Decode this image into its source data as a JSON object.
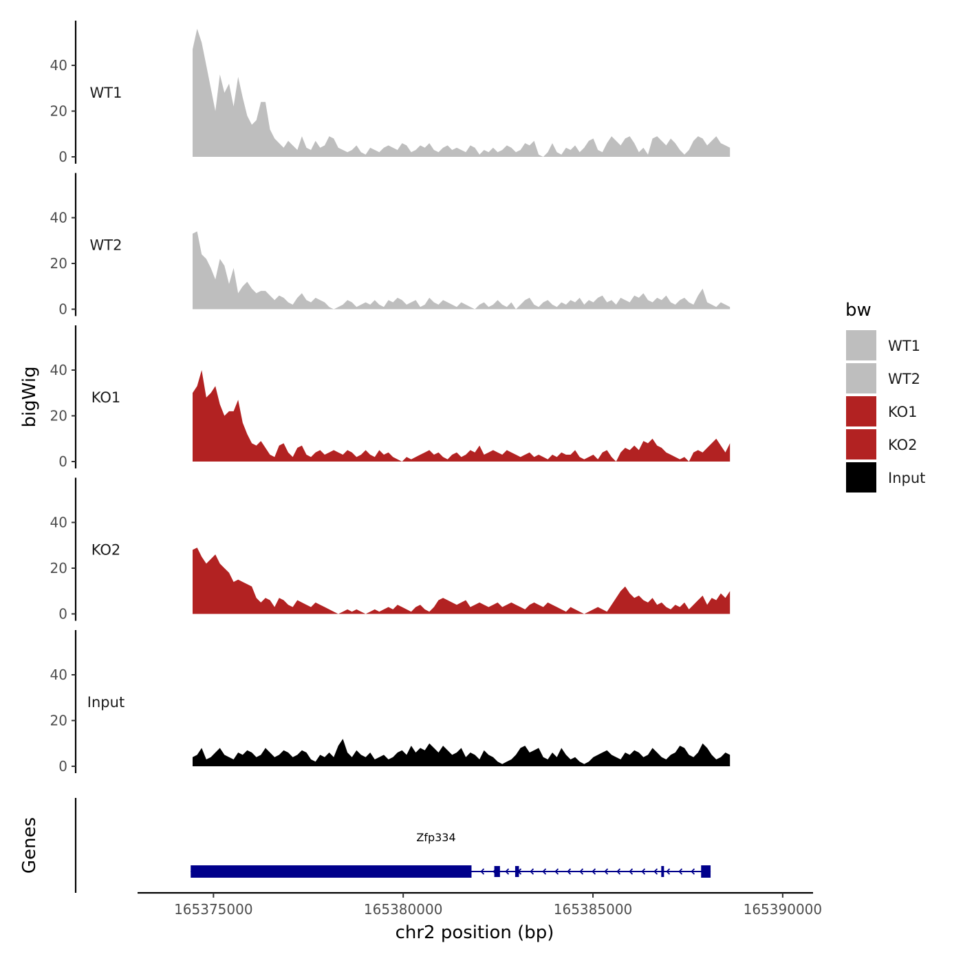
{
  "chart_data": {
    "type": "area",
    "title": "",
    "ylabel": "bigWig",
    "xlabel": "chr2 position (bp)",
    "xlim": [
      165373000,
      165390800
    ],
    "x_ticks": [
      165375000,
      165380000,
      165385000,
      165390000
    ],
    "x_tick_labels": [
      "165375000",
      "165380000",
      "165385000",
      "165390000"
    ],
    "ylim": [
      0,
      58
    ],
    "y_ticks": [
      0,
      20,
      40
    ],
    "y_tick_labels": [
      "0",
      "20",
      "40"
    ],
    "grid": false,
    "legend": {
      "title": "bw",
      "position": "right",
      "entries": [
        {
          "label": "WT1",
          "color": "#bebebe"
        },
        {
          "label": "WT2",
          "color": "#bebebe"
        },
        {
          "label": "KO1",
          "color": "#b22222"
        },
        {
          "label": "KO2",
          "color": "#b22222"
        },
        {
          "label": "Input",
          "color": "#000000"
        }
      ]
    },
    "x_start": 165374450,
    "x_step": 120,
    "series": [
      {
        "name": "WT1",
        "color": "#bebebe",
        "values": [
          47,
          56,
          50,
          40,
          30,
          20,
          36,
          28,
          32,
          22,
          35,
          26,
          18,
          14,
          16,
          24,
          24,
          12,
          8,
          6,
          4,
          7,
          5,
          3,
          9,
          4,
          3,
          7,
          4,
          5,
          9,
          8,
          4,
          3,
          2,
          3,
          5,
          2,
          1,
          4,
          3,
          2,
          4,
          5,
          4,
          3,
          6,
          5,
          2,
          3,
          5,
          4,
          6,
          3,
          2,
          4,
          5,
          3,
          4,
          3,
          2,
          5,
          4,
          1,
          3,
          2,
          4,
          2,
          3,
          5,
          4,
          2,
          3,
          6,
          5,
          7,
          1,
          0,
          2,
          6,
          2,
          1,
          4,
          3,
          5,
          2,
          4,
          7,
          8,
          3,
          2,
          6,
          9,
          7,
          5,
          8,
          9,
          6,
          2,
          4,
          1,
          8,
          9,
          7,
          5,
          8,
          6,
          3,
          1,
          3,
          7,
          9,
          8,
          5,
          7,
          9,
          6,
          5,
          4
        ]
      },
      {
        "name": "WT2",
        "color": "#bebebe",
        "values": [
          33,
          34,
          24,
          22,
          18,
          13,
          22,
          19,
          11,
          18,
          7,
          10,
          12,
          9,
          7,
          8,
          8,
          6,
          4,
          6,
          5,
          3,
          2,
          5,
          7,
          4,
          3,
          5,
          4,
          3,
          1,
          0,
          1,
          2,
          4,
          3,
          1,
          2,
          3,
          2,
          4,
          2,
          1,
          4,
          3,
          5,
          4,
          2,
          3,
          4,
          1,
          2,
          5,
          3,
          2,
          4,
          3,
          2,
          1,
          3,
          2,
          1,
          0,
          2,
          3,
          1,
          2,
          4,
          2,
          1,
          3,
          0,
          2,
          4,
          5,
          2,
          1,
          3,
          4,
          2,
          1,
          3,
          2,
          4,
          3,
          5,
          2,
          4,
          3,
          5,
          6,
          3,
          4,
          2,
          5,
          4,
          3,
          6,
          5,
          7,
          4,
          3,
          5,
          4,
          6,
          3,
          2,
          4,
          5,
          3,
          2,
          6,
          9,
          3,
          2,
          1,
          3,
          2,
          1
        ]
      },
      {
        "name": "KO1",
        "color": "#b22222",
        "values": [
          30,
          33,
          40,
          28,
          30,
          33,
          25,
          20,
          22,
          22,
          27,
          17,
          12,
          8,
          7,
          9,
          6,
          3,
          2,
          7,
          8,
          4,
          2,
          6,
          7,
          3,
          2,
          4,
          5,
          3,
          4,
          5,
          4,
          3,
          5,
          4,
          2,
          3,
          5,
          3,
          2,
          5,
          3,
          4,
          2,
          1,
          0,
          2,
          1,
          2,
          3,
          4,
          5,
          3,
          4,
          2,
          1,
          3,
          4,
          2,
          3,
          5,
          4,
          7,
          3,
          4,
          5,
          4,
          3,
          5,
          4,
          3,
          2,
          3,
          4,
          2,
          3,
          2,
          1,
          3,
          2,
          4,
          3,
          3,
          5,
          2,
          1,
          2,
          3,
          1,
          4,
          5,
          2,
          0,
          4,
          6,
          5,
          7,
          5,
          9,
          8,
          10,
          7,
          6,
          4,
          3,
          2,
          1,
          2,
          0,
          4,
          5,
          4,
          6,
          8,
          10,
          7,
          4,
          8
        ]
      },
      {
        "name": "KO2",
        "color": "#b22222",
        "values": [
          28,
          29,
          25,
          22,
          24,
          26,
          22,
          20,
          18,
          14,
          15,
          14,
          13,
          12,
          7,
          5,
          7,
          6,
          3,
          7,
          6,
          4,
          3,
          6,
          5,
          4,
          3,
          5,
          4,
          3,
          2,
          1,
          0,
          1,
          2,
          1,
          2,
          1,
          0,
          1,
          2,
          1,
          2,
          3,
          2,
          4,
          3,
          2,
          1,
          3,
          4,
          2,
          1,
          3,
          6,
          7,
          6,
          5,
          4,
          5,
          6,
          3,
          4,
          5,
          4,
          3,
          4,
          5,
          3,
          4,
          5,
          4,
          3,
          2,
          4,
          5,
          4,
          3,
          5,
          4,
          3,
          2,
          1,
          3,
          2,
          1,
          0,
          1,
          2,
          3,
          2,
          1,
          4,
          7,
          10,
          12,
          9,
          7,
          8,
          6,
          5,
          7,
          4,
          5,
          3,
          2,
          4,
          3,
          5,
          2,
          4,
          6,
          8,
          4,
          7,
          6,
          9,
          7,
          10
        ]
      },
      {
        "name": "Input",
        "color": "#000000",
        "values": [
          4,
          5,
          8,
          3,
          4,
          6,
          8,
          5,
          4,
          3,
          6,
          5,
          7,
          6,
          4,
          5,
          8,
          6,
          4,
          5,
          7,
          6,
          4,
          5,
          7,
          6,
          3,
          2,
          5,
          4,
          6,
          4,
          9,
          12,
          6,
          4,
          7,
          5,
          4,
          6,
          3,
          4,
          5,
          3,
          4,
          6,
          7,
          5,
          9,
          6,
          8,
          7,
          10,
          8,
          6,
          9,
          7,
          5,
          6,
          8,
          4,
          6,
          5,
          3,
          7,
          5,
          4,
          2,
          1,
          2,
          3,
          5,
          8,
          9,
          6,
          7,
          8,
          4,
          3,
          6,
          4,
          8,
          5,
          3,
          4,
          2,
          1,
          2,
          4,
          5,
          6,
          7,
          5,
          4,
          3,
          6,
          5,
          7,
          6,
          4,
          5,
          8,
          6,
          4,
          3,
          5,
          6,
          9,
          8,
          5,
          4,
          6,
          10,
          8,
          5,
          3,
          4,
          6,
          5
        ]
      }
    ],
    "genes_track": {
      "label": "Genes",
      "gene_name": "Zfp334",
      "color": "#00008b",
      "start": 165374400,
      "end": 165388100,
      "thick_start": 165374400,
      "thick_end": 165381800,
      "exons": [
        [
          165382400,
          165382550
        ],
        [
          165382950,
          165383050
        ],
        [
          165386800,
          165386850
        ],
        [
          165387850,
          165388100
        ]
      ]
    }
  }
}
